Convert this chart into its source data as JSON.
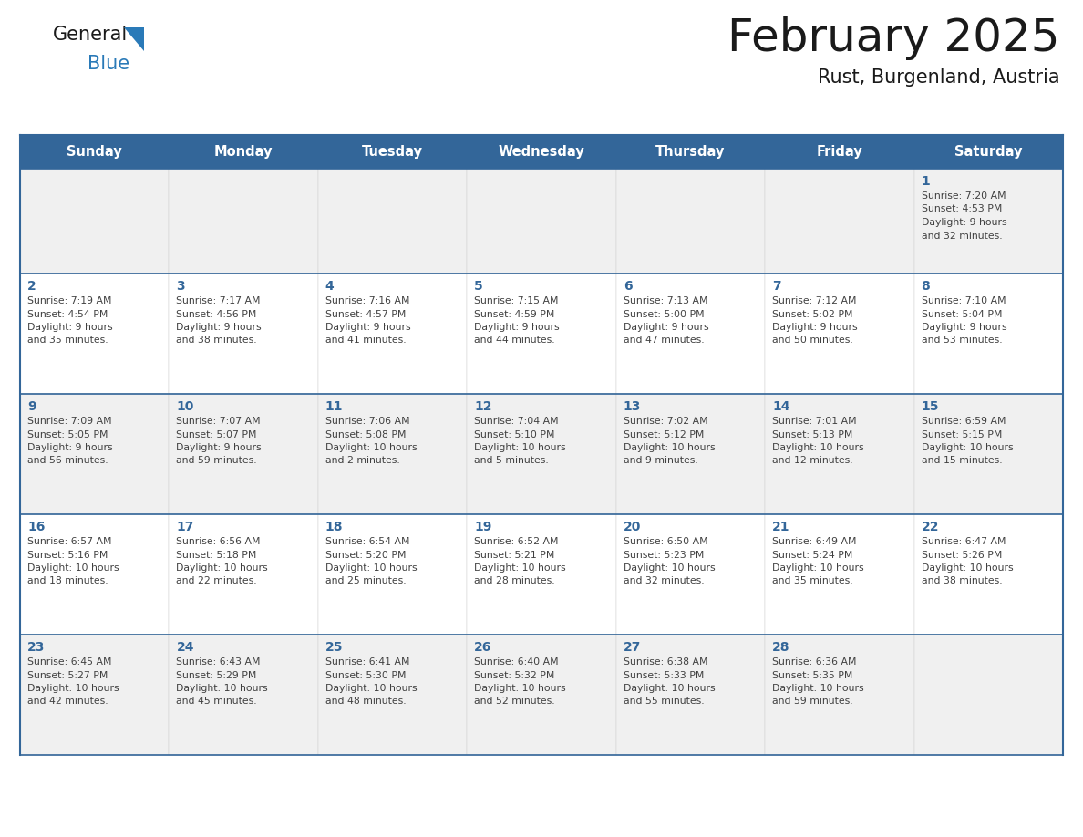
{
  "title": "February 2025",
  "subtitle": "Rust, Burgenland, Austria",
  "days_of_week": [
    "Sunday",
    "Monday",
    "Tuesday",
    "Wednesday",
    "Thursday",
    "Friday",
    "Saturday"
  ],
  "header_bg": "#336699",
  "header_text": "#ffffff",
  "row0_bg": "#f0f0f0",
  "row1_bg": "#ffffff",
  "border_color": "#336699",
  "day_num_color": "#336699",
  "text_color": "#404040",
  "title_color": "#1a1a1a",
  "logo_general_color": "#1a1a1a",
  "logo_blue_color": "#2a7ab8",
  "calendar_data": [
    {
      "day": 1,
      "col": 6,
      "row": 0,
      "sunrise": "7:20 AM",
      "sunset": "4:53 PM",
      "daylight_line1": "Daylight: 9 hours",
      "daylight_line2": "and 32 minutes."
    },
    {
      "day": 2,
      "col": 0,
      "row": 1,
      "sunrise": "7:19 AM",
      "sunset": "4:54 PM",
      "daylight_line1": "Daylight: 9 hours",
      "daylight_line2": "and 35 minutes."
    },
    {
      "day": 3,
      "col": 1,
      "row": 1,
      "sunrise": "7:17 AM",
      "sunset": "4:56 PM",
      "daylight_line1": "Daylight: 9 hours",
      "daylight_line2": "and 38 minutes."
    },
    {
      "day": 4,
      "col": 2,
      "row": 1,
      "sunrise": "7:16 AM",
      "sunset": "4:57 PM",
      "daylight_line1": "Daylight: 9 hours",
      "daylight_line2": "and 41 minutes."
    },
    {
      "day": 5,
      "col": 3,
      "row": 1,
      "sunrise": "7:15 AM",
      "sunset": "4:59 PM",
      "daylight_line1": "Daylight: 9 hours",
      "daylight_line2": "and 44 minutes."
    },
    {
      "day": 6,
      "col": 4,
      "row": 1,
      "sunrise": "7:13 AM",
      "sunset": "5:00 PM",
      "daylight_line1": "Daylight: 9 hours",
      "daylight_line2": "and 47 minutes."
    },
    {
      "day": 7,
      "col": 5,
      "row": 1,
      "sunrise": "7:12 AM",
      "sunset": "5:02 PM",
      "daylight_line1": "Daylight: 9 hours",
      "daylight_line2": "and 50 minutes."
    },
    {
      "day": 8,
      "col": 6,
      "row": 1,
      "sunrise": "7:10 AM",
      "sunset": "5:04 PM",
      "daylight_line1": "Daylight: 9 hours",
      "daylight_line2": "and 53 minutes."
    },
    {
      "day": 9,
      "col": 0,
      "row": 2,
      "sunrise": "7:09 AM",
      "sunset": "5:05 PM",
      "daylight_line1": "Daylight: 9 hours",
      "daylight_line2": "and 56 minutes."
    },
    {
      "day": 10,
      "col": 1,
      "row": 2,
      "sunrise": "7:07 AM",
      "sunset": "5:07 PM",
      "daylight_line1": "Daylight: 9 hours",
      "daylight_line2": "and 59 minutes."
    },
    {
      "day": 11,
      "col": 2,
      "row": 2,
      "sunrise": "7:06 AM",
      "sunset": "5:08 PM",
      "daylight_line1": "Daylight: 10 hours",
      "daylight_line2": "and 2 minutes."
    },
    {
      "day": 12,
      "col": 3,
      "row": 2,
      "sunrise": "7:04 AM",
      "sunset": "5:10 PM",
      "daylight_line1": "Daylight: 10 hours",
      "daylight_line2": "and 5 minutes."
    },
    {
      "day": 13,
      "col": 4,
      "row": 2,
      "sunrise": "7:02 AM",
      "sunset": "5:12 PM",
      "daylight_line1": "Daylight: 10 hours",
      "daylight_line2": "and 9 minutes."
    },
    {
      "day": 14,
      "col": 5,
      "row": 2,
      "sunrise": "7:01 AM",
      "sunset": "5:13 PM",
      "daylight_line1": "Daylight: 10 hours",
      "daylight_line2": "and 12 minutes."
    },
    {
      "day": 15,
      "col": 6,
      "row": 2,
      "sunrise": "6:59 AM",
      "sunset": "5:15 PM",
      "daylight_line1": "Daylight: 10 hours",
      "daylight_line2": "and 15 minutes."
    },
    {
      "day": 16,
      "col": 0,
      "row": 3,
      "sunrise": "6:57 AM",
      "sunset": "5:16 PM",
      "daylight_line1": "Daylight: 10 hours",
      "daylight_line2": "and 18 minutes."
    },
    {
      "day": 17,
      "col": 1,
      "row": 3,
      "sunrise": "6:56 AM",
      "sunset": "5:18 PM",
      "daylight_line1": "Daylight: 10 hours",
      "daylight_line2": "and 22 minutes."
    },
    {
      "day": 18,
      "col": 2,
      "row": 3,
      "sunrise": "6:54 AM",
      "sunset": "5:20 PM",
      "daylight_line1": "Daylight: 10 hours",
      "daylight_line2": "and 25 minutes."
    },
    {
      "day": 19,
      "col": 3,
      "row": 3,
      "sunrise": "6:52 AM",
      "sunset": "5:21 PM",
      "daylight_line1": "Daylight: 10 hours",
      "daylight_line2": "and 28 minutes."
    },
    {
      "day": 20,
      "col": 4,
      "row": 3,
      "sunrise": "6:50 AM",
      "sunset": "5:23 PM",
      "daylight_line1": "Daylight: 10 hours",
      "daylight_line2": "and 32 minutes."
    },
    {
      "day": 21,
      "col": 5,
      "row": 3,
      "sunrise": "6:49 AM",
      "sunset": "5:24 PM",
      "daylight_line1": "Daylight: 10 hours",
      "daylight_line2": "and 35 minutes."
    },
    {
      "day": 22,
      "col": 6,
      "row": 3,
      "sunrise": "6:47 AM",
      "sunset": "5:26 PM",
      "daylight_line1": "Daylight: 10 hours",
      "daylight_line2": "and 38 minutes."
    },
    {
      "day": 23,
      "col": 0,
      "row": 4,
      "sunrise": "6:45 AM",
      "sunset": "5:27 PM",
      "daylight_line1": "Daylight: 10 hours",
      "daylight_line2": "and 42 minutes."
    },
    {
      "day": 24,
      "col": 1,
      "row": 4,
      "sunrise": "6:43 AM",
      "sunset": "5:29 PM",
      "daylight_line1": "Daylight: 10 hours",
      "daylight_line2": "and 45 minutes."
    },
    {
      "day": 25,
      "col": 2,
      "row": 4,
      "sunrise": "6:41 AM",
      "sunset": "5:30 PM",
      "daylight_line1": "Daylight: 10 hours",
      "daylight_line2": "and 48 minutes."
    },
    {
      "day": 26,
      "col": 3,
      "row": 4,
      "sunrise": "6:40 AM",
      "sunset": "5:32 PM",
      "daylight_line1": "Daylight: 10 hours",
      "daylight_line2": "and 52 minutes."
    },
    {
      "day": 27,
      "col": 4,
      "row": 4,
      "sunrise": "6:38 AM",
      "sunset": "5:33 PM",
      "daylight_line1": "Daylight: 10 hours",
      "daylight_line2": "and 55 minutes."
    },
    {
      "day": 28,
      "col": 5,
      "row": 4,
      "sunrise": "6:36 AM",
      "sunset": "5:35 PM",
      "daylight_line1": "Daylight: 10 hours",
      "daylight_line2": "and 59 minutes."
    }
  ]
}
